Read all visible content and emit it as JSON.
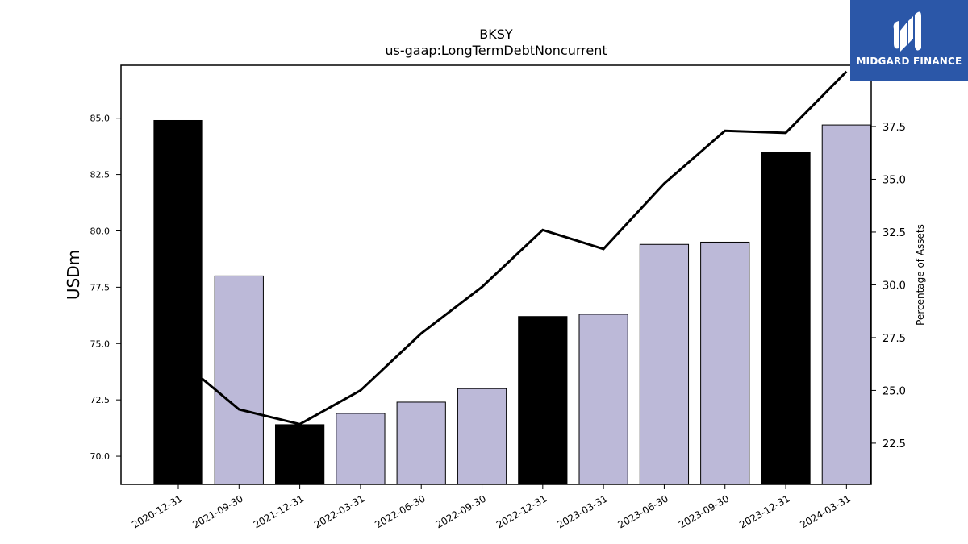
{
  "chart_data": {
    "type": "bar",
    "title": "BKSY",
    "subtitle": "us-gaap:LongTermDebtNoncurrent",
    "ylabel": "USDm",
    "y2label": "Percentage of Assets",
    "categories": [
      "2020-12-31",
      "2021-09-30",
      "2021-12-31",
      "2022-03-31",
      "2022-06-30",
      "2022-09-30",
      "2022-12-31",
      "2023-03-31",
      "2023-06-30",
      "2023-09-30",
      "2023-12-31",
      "2024-03-31"
    ],
    "bar_values": [
      84.9,
      78.0,
      71.4,
      71.9,
      72.4,
      73.0,
      76.2,
      76.3,
      79.4,
      79.5,
      83.5,
      84.7
    ],
    "bar_colors": [
      "#000000",
      "#bcb9d8",
      "#000000",
      "#bcb9d8",
      "#bcb9d8",
      "#bcb9d8",
      "#000000",
      "#bcb9d8",
      "#bcb9d8",
      "#bcb9d8",
      "#000000",
      "#bcb9d8"
    ],
    "line_values": [
      26.5,
      24.1,
      23.4,
      25.0,
      27.7,
      29.9,
      32.6,
      31.7,
      34.8,
      37.3,
      37.2,
      40.1
    ],
    "line_color": "#000000",
    "ylim": [
      68.75,
      87.35
    ],
    "y2lim": [
      20.55,
      40.4
    ],
    "yticks": [
      "70.0",
      "72.5",
      "75.0",
      "77.5",
      "80.0",
      "82.5",
      "85.0"
    ],
    "y2ticks": [
      "22.5",
      "25.0",
      "27.5",
      "30.0",
      "32.5",
      "35.0",
      "37.5"
    ],
    "grid": false
  },
  "logo": {
    "text": "MIDGARD FINANCE",
    "background": "#2b57a8"
  }
}
